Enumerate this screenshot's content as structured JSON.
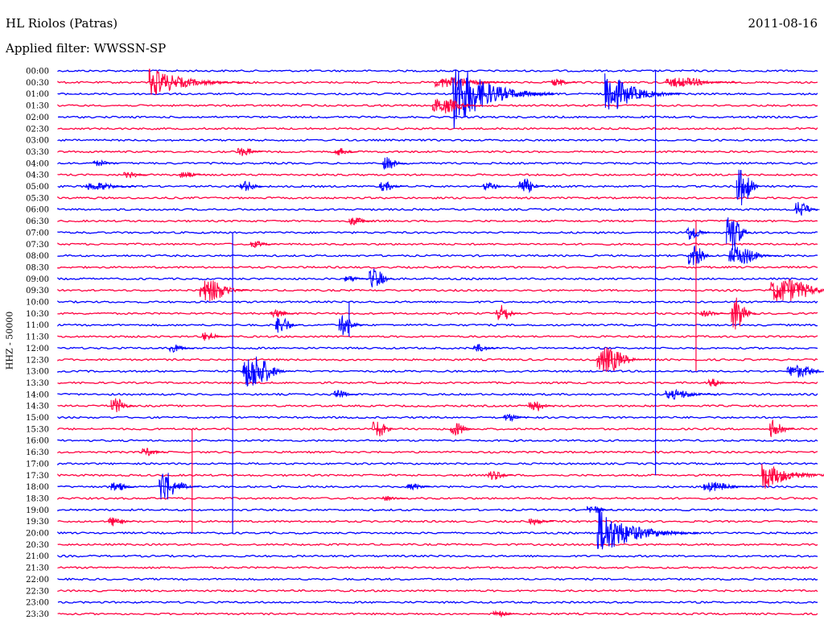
{
  "header": {
    "station": "HL Riolos (Patras)",
    "date": "2011-08-16",
    "filter": "Applied filter: WWSSN-SP"
  },
  "chart_data": {
    "type": "helicorder",
    "title": "HL Riolos (Patras)",
    "date": "2011-08-16",
    "filter": "WWSSN-SP",
    "ylabel": "HHZ - 50000",
    "row_interval_minutes": 30,
    "row_labels": [
      "00:00",
      "00:30",
      "01:00",
      "01:30",
      "02:00",
      "02:30",
      "03:00",
      "03:30",
      "04:00",
      "04:30",
      "05:00",
      "05:30",
      "06:00",
      "06:30",
      "07:00",
      "07:30",
      "08:00",
      "08:30",
      "09:00",
      "09:30",
      "10:00",
      "10:30",
      "11:00",
      "11:30",
      "12:00",
      "12:30",
      "13:00",
      "13:30",
      "14:00",
      "14:30",
      "15:00",
      "15:30",
      "16:00",
      "16:30",
      "17:00",
      "17:30",
      "18:00",
      "18:30",
      "19:00",
      "19:30",
      "20:00",
      "20:30",
      "21:00",
      "21:30",
      "22:00",
      "22:30",
      "23:00",
      "23:30"
    ],
    "trace_colors": [
      "#0000ff",
      "#ff0040"
    ],
    "events": [
      {
        "row": 1,
        "minute": 3.6,
        "amp": 20,
        "dur": 4,
        "big": true
      },
      {
        "row": 1,
        "minute": 14.9,
        "amp": 7,
        "dur": 3
      },
      {
        "row": 1,
        "minute": 19.5,
        "amp": 5,
        "dur": 1
      },
      {
        "row": 1,
        "minute": 24.0,
        "amp": 6,
        "dur": 3
      },
      {
        "row": 2,
        "minute": 15.6,
        "amp": 48,
        "dur": 4,
        "big": true
      },
      {
        "row": 2,
        "minute": 21.6,
        "amp": 34,
        "dur": 3,
        "big": true
      },
      {
        "row": 3,
        "minute": 14.8,
        "amp": 10,
        "dur": 2
      },
      {
        "row": 7,
        "minute": 7.1,
        "amp": 6,
        "dur": 1
      },
      {
        "row": 7,
        "minute": 10.9,
        "amp": 5,
        "dur": 1
      },
      {
        "row": 8,
        "minute": 1.4,
        "amp": 4,
        "dur": 1
      },
      {
        "row": 8,
        "minute": 12.8,
        "amp": 8,
        "dur": 1
      },
      {
        "row": 9,
        "minute": 2.6,
        "amp": 4,
        "dur": 1
      },
      {
        "row": 9,
        "minute": 4.8,
        "amp": 4,
        "dur": 1
      },
      {
        "row": 10,
        "minute": 1.1,
        "amp": 5,
        "dur": 2
      },
      {
        "row": 10,
        "minute": 7.2,
        "amp": 7,
        "dur": 1
      },
      {
        "row": 10,
        "minute": 12.7,
        "amp": 6,
        "dur": 1
      },
      {
        "row": 10,
        "minute": 16.8,
        "amp": 5,
        "dur": 1
      },
      {
        "row": 10,
        "minute": 18.2,
        "amp": 10,
        "dur": 1
      },
      {
        "row": 10,
        "minute": 26.8,
        "amp": 24,
        "dur": 1
      },
      {
        "row": 12,
        "minute": 29.1,
        "amp": 10,
        "dur": 1
      },
      {
        "row": 13,
        "minute": 11.5,
        "amp": 5,
        "dur": 1
      },
      {
        "row": 14,
        "minute": 24.8,
        "amp": 10,
        "dur": 1
      },
      {
        "row": 14,
        "minute": 26.4,
        "amp": 25,
        "dur": 1
      },
      {
        "row": 15,
        "minute": 7.6,
        "amp": 4,
        "dur": 1
      },
      {
        "row": 16,
        "minute": 24.9,
        "amp": 14,
        "dur": 1
      },
      {
        "row": 16,
        "minute": 26.5,
        "amp": 12,
        "dur": 2
      },
      {
        "row": 18,
        "minute": 11.3,
        "amp": 4,
        "dur": 1
      },
      {
        "row": 18,
        "minute": 12.3,
        "amp": 13,
        "dur": 1
      },
      {
        "row": 19,
        "minute": 5.6,
        "amp": 14,
        "dur": 2
      },
      {
        "row": 19,
        "minute": 28.1,
        "amp": 15,
        "dur": 3
      },
      {
        "row": 21,
        "minute": 8.4,
        "amp": 5,
        "dur": 1
      },
      {
        "row": 21,
        "minute": 17.3,
        "amp": 11,
        "dur": 1
      },
      {
        "row": 21,
        "minute": 25.4,
        "amp": 4,
        "dur": 1
      },
      {
        "row": 21,
        "minute": 26.6,
        "amp": 22,
        "dur": 1
      },
      {
        "row": 22,
        "minute": 8.6,
        "amp": 11,
        "dur": 1
      },
      {
        "row": 22,
        "minute": 11.1,
        "amp": 13,
        "dur": 1
      },
      {
        "row": 23,
        "minute": 5.7,
        "amp": 6,
        "dur": 1
      },
      {
        "row": 24,
        "minute": 4.4,
        "amp": 5,
        "dur": 1
      },
      {
        "row": 24,
        "minute": 16.4,
        "amp": 5,
        "dur": 1
      },
      {
        "row": 25,
        "minute": 21.3,
        "amp": 16,
        "dur": 2
      },
      {
        "row": 26,
        "minute": 7.3,
        "amp": 22,
        "dur": 2
      },
      {
        "row": 26,
        "minute": 28.8,
        "amp": 8,
        "dur": 2
      },
      {
        "row": 27,
        "minute": 25.7,
        "amp": 5,
        "dur": 1
      },
      {
        "row": 28,
        "minute": 10.9,
        "amp": 5,
        "dur": 1
      },
      {
        "row": 28,
        "minute": 24.0,
        "amp": 6,
        "dur": 2
      },
      {
        "row": 29,
        "minute": 2.1,
        "amp": 10,
        "dur": 1
      },
      {
        "row": 29,
        "minute": 18.6,
        "amp": 8,
        "dur": 1
      },
      {
        "row": 30,
        "minute": 17.6,
        "amp": 5,
        "dur": 1
      },
      {
        "row": 31,
        "minute": 12.4,
        "amp": 11,
        "dur": 1
      },
      {
        "row": 31,
        "minute": 15.5,
        "amp": 9,
        "dur": 1
      },
      {
        "row": 31,
        "minute": 28.1,
        "amp": 12,
        "dur": 1
      },
      {
        "row": 33,
        "minute": 3.3,
        "amp": 5,
        "dur": 1
      },
      {
        "row": 35,
        "minute": 27.8,
        "amp": 20,
        "dur": 3,
        "big": true
      },
      {
        "row": 35,
        "minute": 17.0,
        "amp": 6,
        "dur": 1
      },
      {
        "row": 36,
        "minute": 2.1,
        "amp": 6,
        "dur": 1
      },
      {
        "row": 36,
        "minute": 4.0,
        "amp": 22,
        "dur": 1
      },
      {
        "row": 36,
        "minute": 4.6,
        "amp": 6,
        "dur": 1
      },
      {
        "row": 36,
        "minute": 13.8,
        "amp": 4,
        "dur": 1
      },
      {
        "row": 36,
        "minute": 25.5,
        "amp": 6,
        "dur": 2
      },
      {
        "row": 37,
        "minute": 12.8,
        "amp": 3,
        "dur": 1
      },
      {
        "row": 38,
        "minute": 20.9,
        "amp": 6,
        "dur": 1
      },
      {
        "row": 39,
        "minute": 2.0,
        "amp": 6,
        "dur": 1
      },
      {
        "row": 39,
        "minute": 18.6,
        "amp": 4,
        "dur": 1
      },
      {
        "row": 40,
        "minute": 21.3,
        "amp": 34,
        "dur": 4,
        "big": true
      },
      {
        "row": 47,
        "minute": 17.2,
        "amp": 4,
        "dur": 1
      }
    ],
    "long_spikes": [
      {
        "minute_x": 6.9,
        "from_row": 14,
        "to_row": 40
      },
      {
        "minute_x": 23.6,
        "from_row": 0,
        "to_row": 35
      },
      {
        "minute_x": 25.2,
        "from_row": 13,
        "to_row": 26
      },
      {
        "minute_x": 11.5,
        "from_row": 20,
        "to_row": 23
      },
      {
        "minute_x": 5.3,
        "from_row": 31,
        "to_row": 40
      }
    ]
  }
}
